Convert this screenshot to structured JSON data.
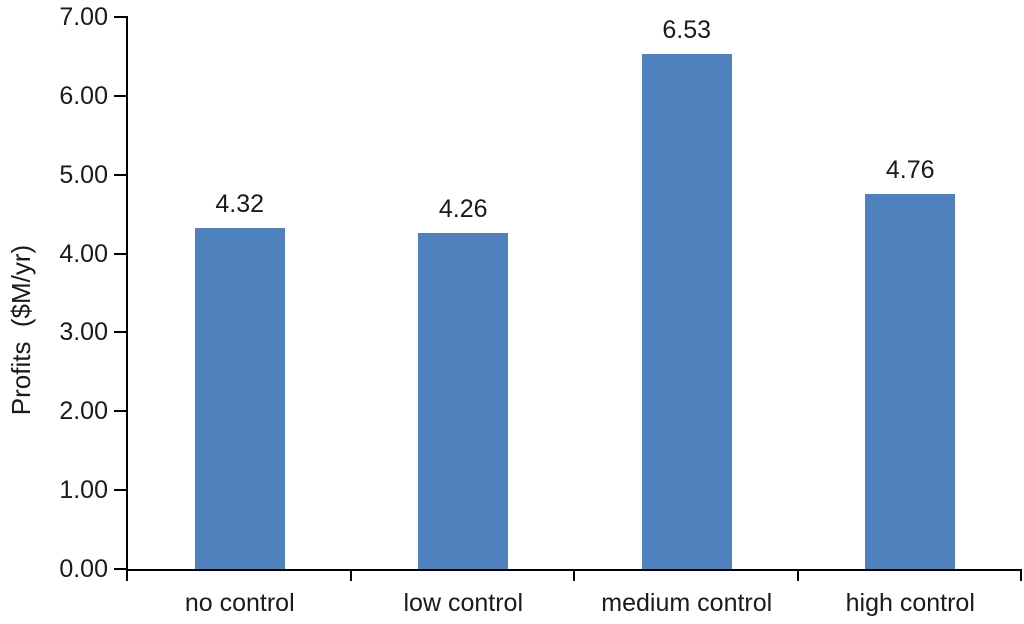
{
  "chart_data": {
    "type": "bar",
    "title": "",
    "xlabel": "",
    "ylabel": "Profits  ($M/yr)",
    "categories": [
      "no control",
      "low control",
      "medium control",
      "high control"
    ],
    "values": [
      4.32,
      4.26,
      6.53,
      4.76
    ],
    "value_labels": [
      "4.32",
      "4.26",
      "6.53",
      "4.76"
    ],
    "ylim": [
      0,
      7
    ],
    "ytick_step": 1,
    "ytick_labels": [
      "0.00",
      "1.00",
      "2.00",
      "3.00",
      "4.00",
      "5.00",
      "6.00",
      "7.00"
    ],
    "grid": false,
    "legend": false,
    "bar_color": "#4F81BD",
    "axis_color": "#000000",
    "text_color": "#1a1a1a"
  }
}
